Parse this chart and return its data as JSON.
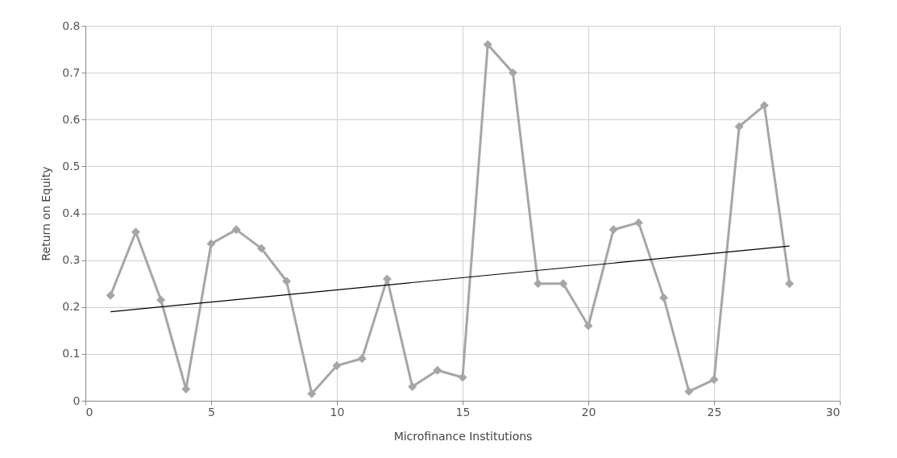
{
  "chart_data": {
    "type": "line",
    "xlabel": "Microfinance Institutions",
    "ylabel": "Return on Equity",
    "xlim": [
      0,
      30
    ],
    "xticks": [
      0,
      5,
      10,
      15,
      20,
      25,
      30
    ],
    "ylim": [
      0,
      0.8
    ],
    "yticks": [
      0,
      0.1,
      0.2,
      0.3,
      0.4,
      0.5,
      0.6,
      0.7,
      0.8
    ],
    "grid": true,
    "series": [
      {
        "color": "#a6a6a6",
        "marker": "diamond",
        "x": [
          1,
          2,
          3,
          4,
          5,
          6,
          7,
          8,
          9,
          10,
          11,
          12,
          13,
          14,
          15,
          16,
          17,
          18,
          19,
          20,
          21,
          22,
          23,
          24,
          25,
          26,
          27,
          28
        ],
        "values": [
          0.225,
          0.36,
          0.215,
          0.025,
          0.335,
          0.365,
          0.325,
          0.255,
          0.015,
          0.075,
          0.09,
          0.26,
          0.03,
          0.065,
          0.05,
          0.76,
          0.7,
          0.25,
          0.25,
          0.16,
          0.365,
          0.38,
          0.22,
          0.02,
          0.045,
          0.585,
          0.63,
          0.25
        ]
      },
      {
        "type": "line",
        "color": "#000000",
        "marker": "none",
        "x": [
          1,
          28
        ],
        "values": [
          0.19,
          0.33
        ]
      }
    ]
  }
}
